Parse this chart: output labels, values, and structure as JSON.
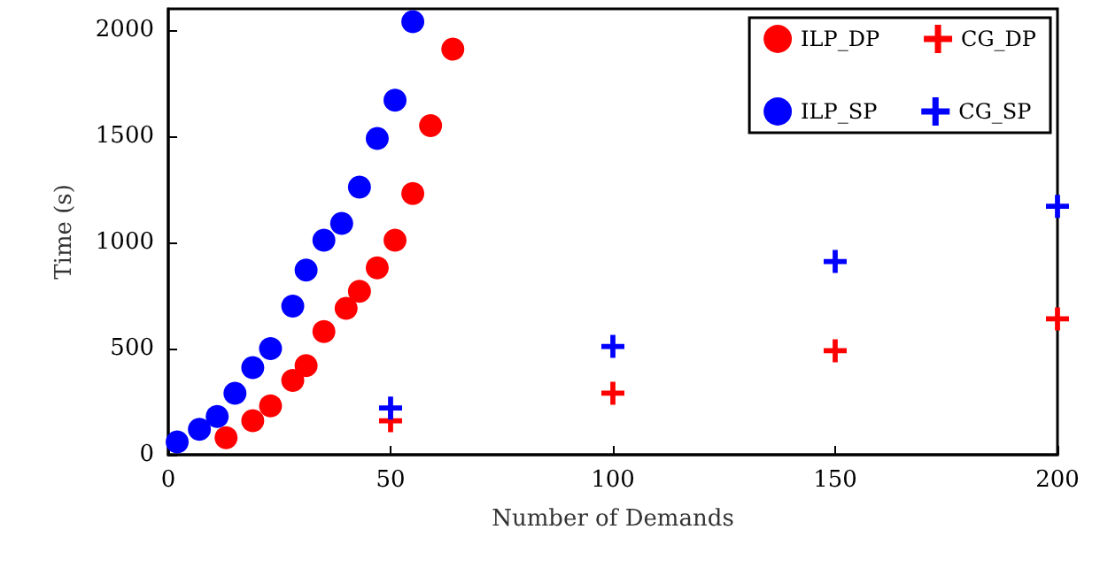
{
  "chart_data": {
    "type": "scatter",
    "xlabel": "Number of Demands",
    "ylabel": "Time (s)",
    "xlim": [
      0,
      200
    ],
    "xticks": [
      0,
      50,
      100,
      150,
      200
    ],
    "ylim": [
      0,
      2100
    ],
    "yticks": [
      0,
      500,
      1000,
      1500,
      2000
    ],
    "grid": false,
    "legend": "top right",
    "series": [
      {
        "name": "ILP_DP",
        "color": "#ff0000",
        "marker": "circle",
        "x": [
          13,
          19,
          23,
          28,
          31,
          35,
          40,
          43,
          47,
          51,
          55,
          59,
          64
        ],
        "values": [
          80,
          160,
          230,
          350,
          420,
          580,
          690,
          770,
          880,
          1010,
          1230,
          1550,
          1910
        ]
      },
      {
        "name": "CG_DP",
        "color": "#ff0000",
        "marker": "cross",
        "x": [
          50,
          100,
          150,
          200
        ],
        "values": [
          160,
          290,
          490,
          640
        ]
      },
      {
        "name": "ILP_SP",
        "color": "#0000ff",
        "marker": "circle",
        "x": [
          2,
          7,
          11,
          15,
          19,
          23,
          28,
          31,
          35,
          39,
          43,
          47,
          51,
          55
        ],
        "values": [
          60,
          120,
          180,
          290,
          410,
          500,
          700,
          870,
          1010,
          1090,
          1260,
          1490,
          1670,
          2040
        ]
      },
      {
        "name": "CG_SP",
        "color": "#0000ff",
        "marker": "cross",
        "x": [
          50,
          100,
          150,
          200
        ],
        "values": [
          220,
          510,
          910,
          1170
        ]
      }
    ]
  }
}
